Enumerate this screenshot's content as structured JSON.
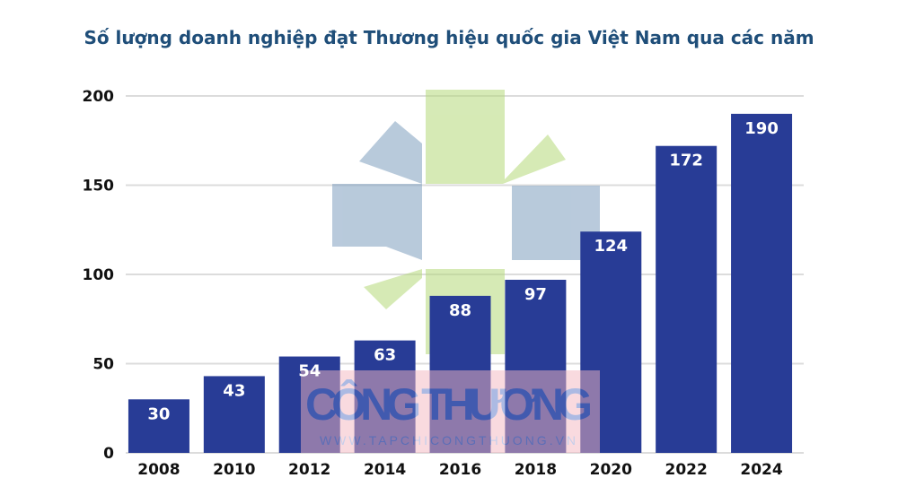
{
  "chart_data": {
    "type": "bar",
    "title": "Số lượng doanh nghiệp đạt Thương hiệu quốc gia Việt Nam qua các năm",
    "xlabel": "",
    "ylabel": "",
    "categories": [
      "2008",
      "2010",
      "2012",
      "2014",
      "2016",
      "2018",
      "2020",
      "2022",
      "2024"
    ],
    "values": [
      30,
      43,
      54,
      63,
      88,
      97,
      124,
      172,
      190
    ],
    "ylim": [
      0,
      200
    ],
    "yticks": [
      0,
      50,
      100,
      150,
      200
    ],
    "grid": true,
    "data_labels": true,
    "colors": {
      "bar": "#283c96",
      "title": "#1f4e79",
      "grid": "#dcdcdc"
    }
  },
  "watermark": {
    "brand": "CÔNG THƯƠNG",
    "url": "WWW.TAPCHICONGTHUONG.VN"
  }
}
